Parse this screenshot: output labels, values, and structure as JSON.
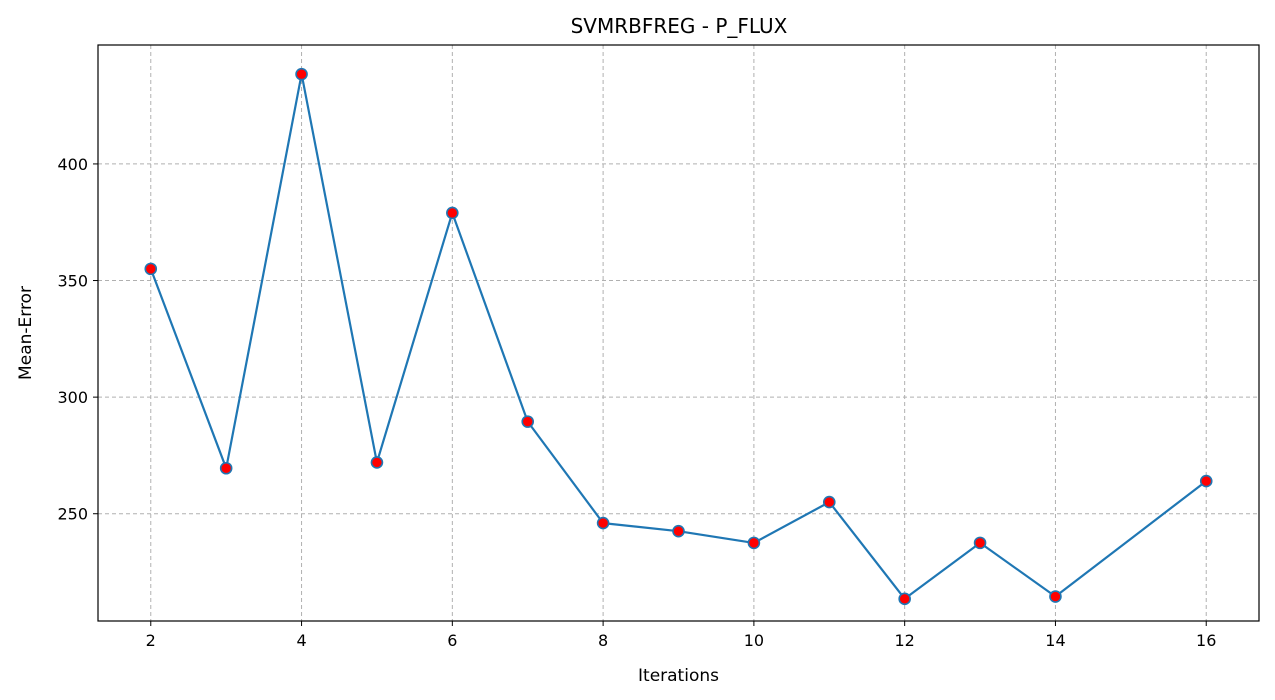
{
  "chart_data": {
    "type": "line",
    "title": "SVMRBFREG - P_FLUX",
    "xlabel": "Iterations",
    "ylabel": "Mean-Error",
    "x": [
      2,
      3,
      4,
      5,
      6,
      7,
      8,
      9,
      10,
      11,
      12,
      13,
      14,
      16
    ],
    "series": [
      {
        "values": [
          355,
          269.5,
          438.5,
          272,
          379,
          289.5,
          246,
          242.5,
          237.5,
          255,
          213.5,
          237.5,
          214.5,
          264
        ]
      }
    ],
    "xlim": [
      1.3,
      16.7
    ],
    "ylim": [
      204,
      451
    ],
    "xticks": [
      2,
      4,
      6,
      8,
      10,
      12,
      14,
      16
    ],
    "yticks": [
      250,
      300,
      350,
      400
    ],
    "grid": true,
    "line_color": "#1f77b4",
    "marker_fill": "#ff0000",
    "marker_edge": "#1f77b4"
  }
}
